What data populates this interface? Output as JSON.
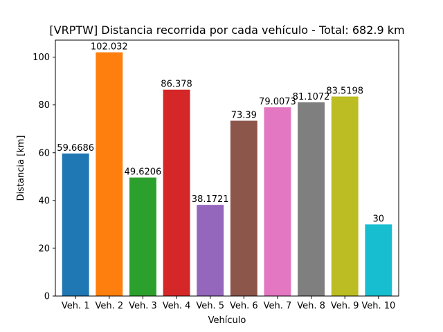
{
  "chart_data": {
    "type": "bar",
    "title": "[VRPTW] Distancia recorrida por cada vehículo - Total: 682.9 km",
    "xlabel": "Vehículo",
    "ylabel": "Distancia [km]",
    "categories": [
      "Veh. 1",
      "Veh. 2",
      "Veh. 3",
      "Veh. 4",
      "Veh. 5",
      "Veh. 6",
      "Veh. 7",
      "Veh. 8",
      "Veh. 9",
      "Veh. 10"
    ],
    "values": [
      59.6686,
      102.032,
      49.6206,
      86.378,
      38.1721,
      73.39,
      79.0073,
      81.1072,
      83.5198,
      30
    ],
    "value_labels": [
      "59.6686",
      "102.032",
      "49.6206",
      "86.378",
      "38.1721",
      "73.39",
      "79.0073",
      "81.1072",
      "83.5198",
      "30"
    ],
    "colors": [
      "#1f77b4",
      "#ff7f0e",
      "#2ca02c",
      "#d62728",
      "#9467bd",
      "#8c564b",
      "#e377c2",
      "#7f7f7f",
      "#bcbd22",
      "#17becf"
    ],
    "ylim": [
      0,
      107.1336
    ],
    "yticks": [
      0,
      20,
      40,
      60,
      80,
      100
    ],
    "grid": false,
    "legend": "none"
  }
}
